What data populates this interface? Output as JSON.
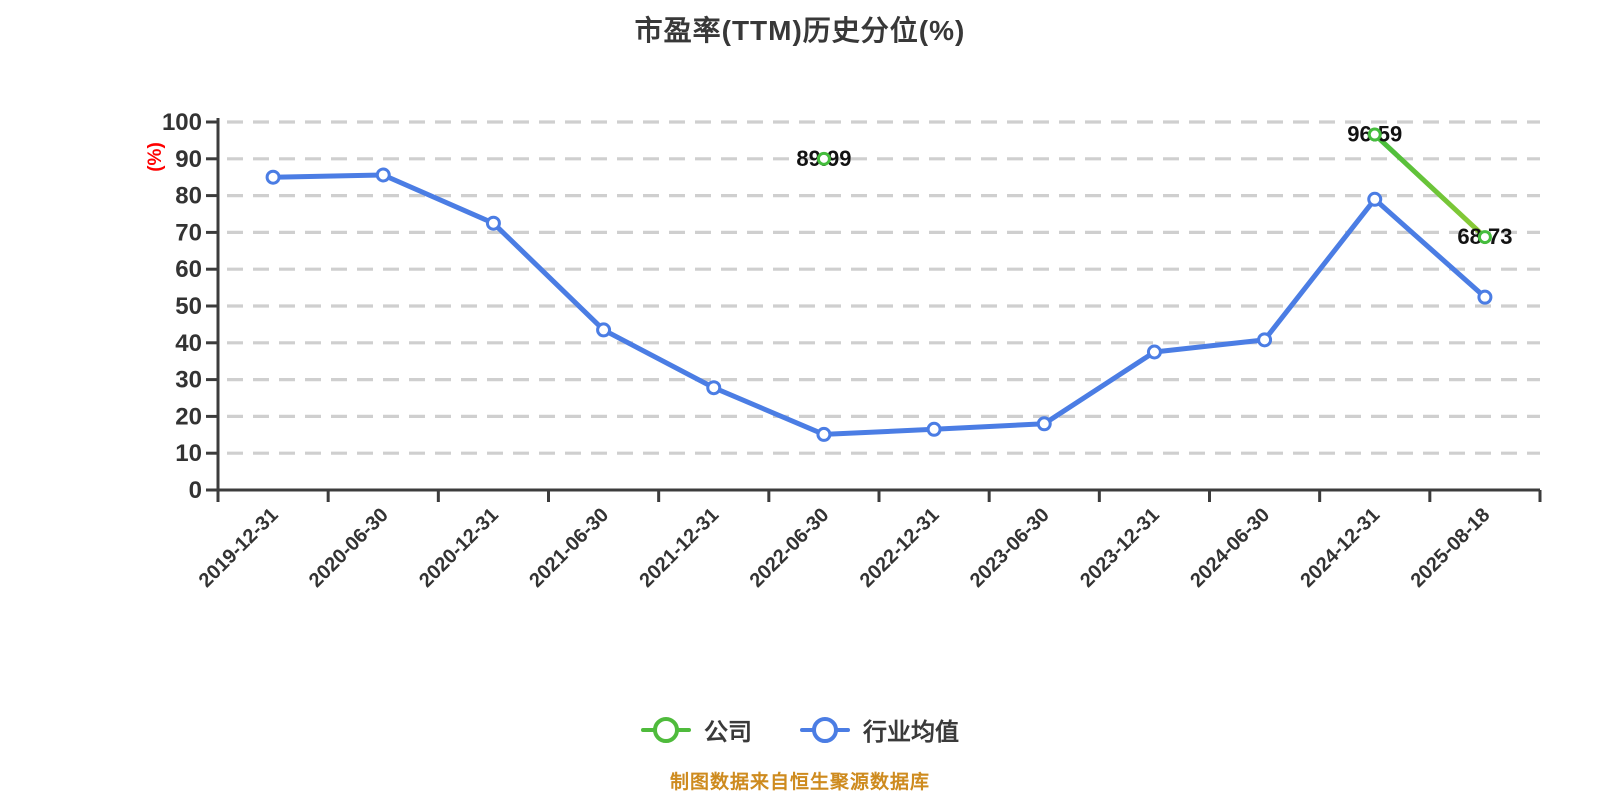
{
  "chart_data": {
    "type": "line",
    "title": "市盈率(TTM)历史分位(%)",
    "ylabel": "(%)",
    "ylim": [
      0,
      100
    ],
    "ytick_interval": 10,
    "grid": "horizontal-dashed",
    "legend_position": "bottom-center",
    "categories": [
      "2019-12-31",
      "2020-06-30",
      "2020-12-31",
      "2021-06-30",
      "2021-12-31",
      "2022-06-30",
      "2022-12-31",
      "2023-06-30",
      "2023-12-31",
      "2024-06-30",
      "2024-12-31",
      "2025-08-18"
    ],
    "series": [
      {
        "name": "公司",
        "color": "#45bd3d",
        "gradient_end": "#90cb35",
        "marker": "white-circle-green-ring",
        "show_point_labels": true,
        "values": [
          null,
          null,
          null,
          null,
          null,
          89.99,
          null,
          null,
          null,
          null,
          96.59,
          68.73
        ]
      },
      {
        "name": "行业均值",
        "color": "#4b7de4",
        "marker": "white-circle-blue-ring",
        "show_point_labels": false,
        "values": [
          85.0,
          85.6,
          72.5,
          43.5,
          27.8,
          15.1,
          16.5,
          18.0,
          37.5,
          40.8,
          79.0,
          52.4
        ]
      }
    ],
    "colors": {
      "title": "#383838",
      "axis": "#3c3c3c",
      "grid": "#cfcfcf",
      "tick_label": "#333333",
      "point_label": "#121212",
      "y_unit_label": "#fe0000"
    }
  },
  "footer": {
    "credit": "制图数据来自恒生聚源数据库",
    "color": "#ce8b1f"
  }
}
